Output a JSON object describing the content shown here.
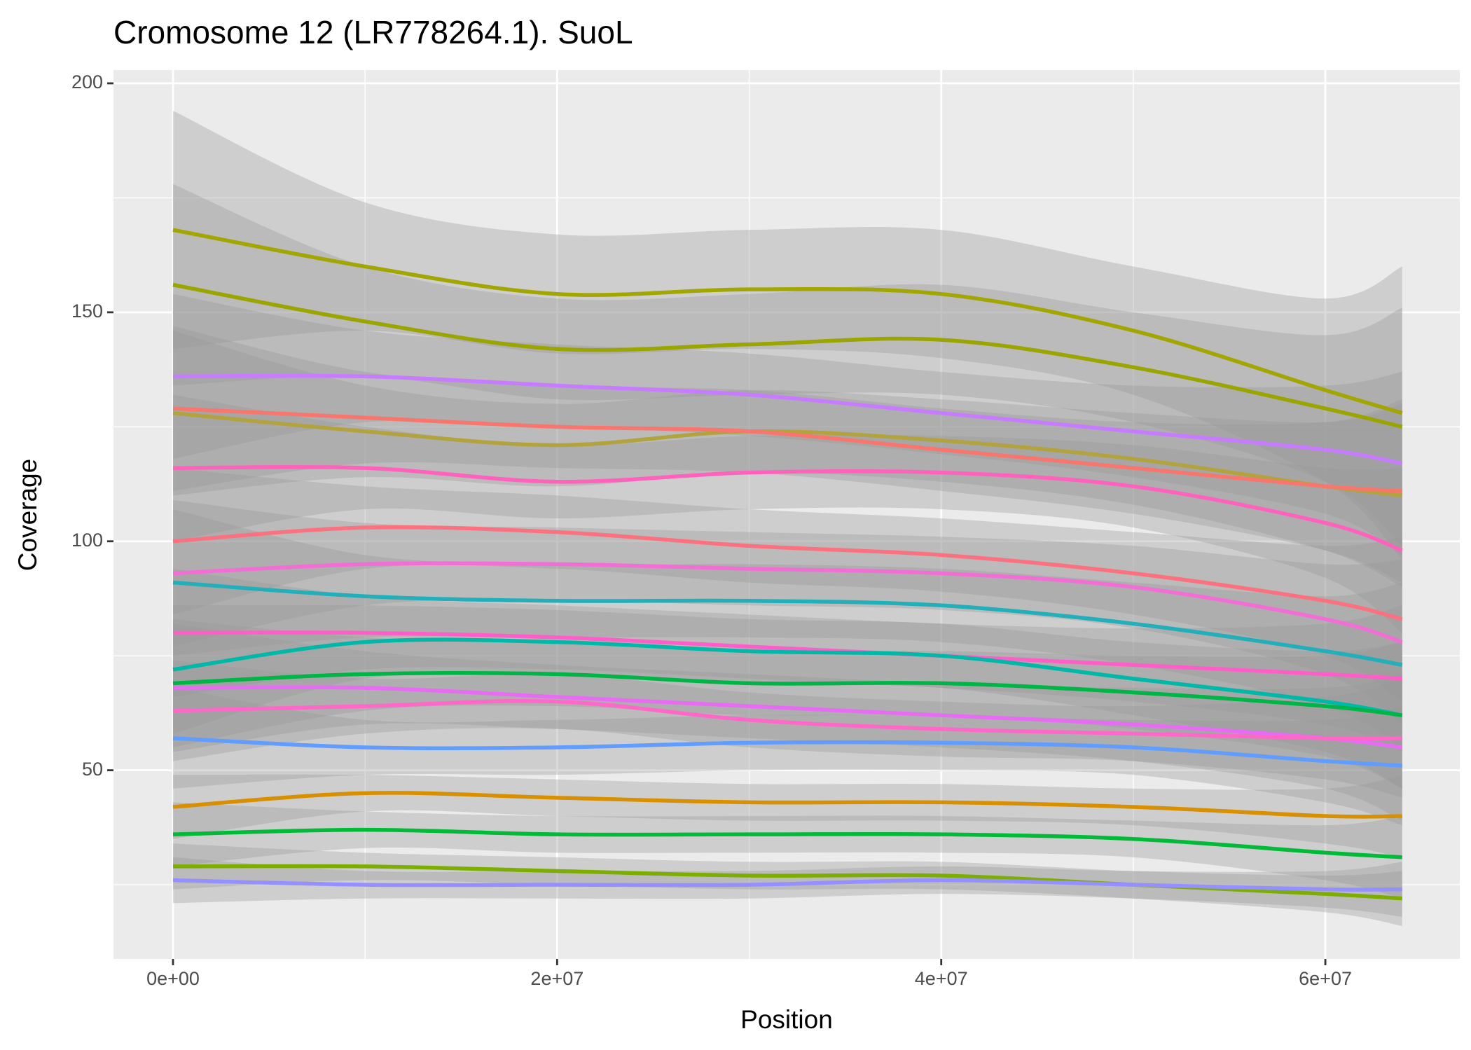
{
  "chart_data": {
    "type": "line",
    "title": "Cromosome 12 (LR778264.1). SuoL",
    "x_label": "Position",
    "y_label": "Coverage",
    "xlim": [
      -3100000,
      67000000
    ],
    "ylim": [
      8.8,
      202.9
    ],
    "xticks": [
      {
        "value": 0,
        "label": "0e+00"
      },
      {
        "value": 20000000,
        "label": "2e+07"
      },
      {
        "value": 40000000,
        "label": "4e+07"
      },
      {
        "value": 60000000,
        "label": "6e+07"
      }
    ],
    "yticks": [
      50,
      100,
      150,
      200
    ],
    "minor_xticks": [
      10000000,
      30000000,
      50000000
    ],
    "minor_yticks": [
      25,
      75,
      125,
      175
    ],
    "grid": true,
    "band_color": "#999999",
    "band_opacity": 0.35,
    "x": [
      0,
      10000000,
      20000000,
      30000000,
      40000000,
      50000000,
      60000000,
      64000000
    ],
    "series": [
      {
        "color": "#a3a500",
        "values": [
          168,
          160,
          154,
          155,
          154,
          146,
          133,
          128
        ],
        "lower": [
          142,
          146,
          141,
          142,
          140,
          132,
          113,
          96
        ],
        "upper": [
          194,
          174,
          167,
          168,
          168,
          160,
          153,
          160
        ]
      },
      {
        "color": "#9aa500",
        "values": [
          156,
          148,
          142,
          143,
          144,
          138,
          129,
          125
        ],
        "lower": [
          134,
          136,
          131,
          132,
          132,
          126,
          113,
          99
        ],
        "upper": [
          178,
          160,
          153,
          154,
          156,
          150,
          145,
          151
        ]
      },
      {
        "color": "#c77cff",
        "values": [
          136,
          136,
          134,
          132,
          128,
          124,
          120,
          117
        ],
        "lower": [
          118,
          126,
          125,
          123,
          119,
          114,
          106,
          97
        ],
        "upper": [
          154,
          146,
          143,
          141,
          137,
          134,
          134,
          137
        ]
      },
      {
        "color": "#b2a33f",
        "values": [
          128,
          124,
          121,
          124,
          122,
          118,
          112,
          110
        ],
        "lower": [
          110,
          114,
          112,
          115,
          113,
          108,
          98,
          90
        ],
        "upper": [
          146,
          134,
          130,
          133,
          131,
          128,
          126,
          130
        ]
      },
      {
        "color": "#f8766d",
        "values": [
          129,
          127,
          125,
          124,
          120,
          116,
          112,
          111
        ],
        "lower": [
          111,
          117,
          116,
          115,
          111,
          106,
          98,
          91
        ],
        "upper": [
          147,
          137,
          134,
          133,
          129,
          126,
          126,
          131
        ]
      },
      {
        "color": "#ff62bc",
        "values": [
          116,
          116,
          113,
          115,
          115,
          112,
          104,
          98
        ],
        "lower": [
          100,
          107,
          105,
          107,
          107,
          103,
          92,
          80
        ],
        "upper": [
          132,
          125,
          121,
          123,
          123,
          121,
          116,
          116
        ]
      },
      {
        "color": "#fc717f",
        "values": [
          100,
          103,
          102,
          99,
          97,
          93,
          87,
          83
        ],
        "lower": [
          84,
          94,
          94,
          91,
          89,
          84,
          75,
          65
        ],
        "upper": [
          116,
          112,
          110,
          107,
          105,
          102,
          99,
          101
        ]
      },
      {
        "color": "#f26ed5",
        "values": [
          93,
          95,
          95,
          94,
          93,
          90,
          83,
          78
        ],
        "lower": [
          77,
          86,
          87,
          86,
          85,
          81,
          71,
          60
        ],
        "upper": [
          109,
          104,
          103,
          102,
          101,
          99,
          95,
          96
        ]
      },
      {
        "color": "#22afb9",
        "values": [
          91,
          88,
          87,
          87,
          86,
          82,
          76,
          73
        ],
        "lower": [
          75,
          79,
          79,
          79,
          78,
          73,
          64,
          55
        ],
        "upper": [
          107,
          97,
          95,
          95,
          94,
          91,
          88,
          91
        ]
      },
      {
        "color": "#ff5ec8",
        "values": [
          80,
          80,
          79,
          77,
          75,
          73,
          71,
          70
        ],
        "lower": [
          66,
          72,
          72,
          70,
          68,
          65,
          60,
          54
        ],
        "upper": [
          94,
          88,
          86,
          84,
          82,
          81,
          82,
          86
        ]
      },
      {
        "color": "#00b8a8",
        "values": [
          72,
          78,
          78,
          76,
          75,
          70,
          65,
          62
        ],
        "lower": [
          58,
          70,
          71,
          69,
          68,
          62,
          54,
          46
        ],
        "upper": [
          86,
          86,
          85,
          83,
          82,
          78,
          76,
          78
        ]
      },
      {
        "color": "#00b548",
        "values": [
          69,
          71,
          71,
          69,
          69,
          67,
          64,
          62
        ],
        "lower": [
          55,
          63,
          64,
          62,
          62,
          59,
          53,
          46
        ],
        "upper": [
          83,
          79,
          78,
          76,
          76,
          75,
          75,
          78
        ]
      },
      {
        "color": "#e76bf3",
        "values": [
          68,
          68,
          66,
          64,
          62,
          60,
          57,
          55
        ],
        "lower": [
          54,
          60,
          59,
          57,
          55,
          52,
          46,
          39
        ],
        "upper": [
          82,
          76,
          73,
          71,
          69,
          68,
          68,
          71
        ]
      },
      {
        "color": "#ff67c8",
        "values": [
          63,
          64,
          65,
          61,
          59,
          58,
          57,
          57
        ],
        "lower": [
          52,
          58,
          59,
          55,
          53,
          52,
          48,
          44
        ],
        "upper": [
          74,
          70,
          71,
          67,
          65,
          64,
          66,
          70
        ]
      },
      {
        "color": "#619cff",
        "values": [
          57,
          55,
          55,
          56,
          56,
          55,
          52,
          51
        ],
        "lower": [
          46,
          49,
          49,
          50,
          50,
          49,
          43,
          38
        ],
        "upper": [
          68,
          61,
          61,
          62,
          62,
          61,
          61,
          64
        ]
      },
      {
        "color": "#d89000",
        "values": [
          42,
          45,
          44,
          43,
          43,
          42,
          40,
          40
        ],
        "lower": [
          35,
          41,
          40,
          39,
          39,
          38,
          34,
          31
        ],
        "upper": [
          49,
          49,
          48,
          47,
          47,
          46,
          46,
          49
        ]
      },
      {
        "color": "#00ba38",
        "values": [
          36,
          37,
          36,
          36,
          36,
          35,
          32,
          31
        ],
        "lower": [
          29,
          33,
          32,
          32,
          32,
          31,
          26,
          22
        ],
        "upper": [
          43,
          41,
          40,
          40,
          40,
          39,
          38,
          40
        ]
      },
      {
        "color": "#7cae00",
        "values": [
          29,
          29,
          28,
          27,
          27,
          25,
          23,
          22
        ],
        "lower": [
          24,
          26,
          25,
          24,
          24,
          22,
          19,
          16
        ],
        "upper": [
          34,
          32,
          31,
          30,
          30,
          28,
          27,
          28
        ]
      },
      {
        "color": "#9590ff",
        "values": [
          26,
          25,
          25,
          25,
          26,
          25,
          24,
          24
        ],
        "lower": [
          21,
          22,
          22,
          22,
          23,
          22,
          20,
          18
        ],
        "upper": [
          31,
          28,
          28,
          28,
          29,
          28,
          28,
          30
        ]
      }
    ]
  }
}
